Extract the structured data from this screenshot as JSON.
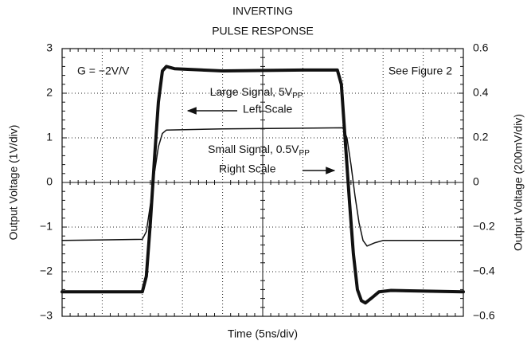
{
  "chart_data": {
    "type": "line",
    "title": [
      "INVERTING",
      "PULSE RESPONSE"
    ],
    "x_label": "Time (5ns/div)",
    "y_label": "Output Voltage (1V/div)",
    "y2_label": "Output Voltage (200mV/div)",
    "annotations": {
      "gain": "G = −2V/V",
      "figure": "See Figure 2",
      "large": {
        "text": "Large Signal, 5V",
        "sub": "PP"
      },
      "left_scale": "Left Scale",
      "small": {
        "text": "Small Signal, 0.5V",
        "sub": "PP"
      },
      "right_scale": "Right Scale"
    },
    "xlim": [
      0,
      50
    ],
    "xticks": [
      0,
      5,
      10,
      15,
      20,
      25,
      30,
      35,
      40,
      45,
      50
    ],
    "ylim": [
      -3,
      3
    ],
    "yticks": [
      {
        "value": -3,
        "label": "−3"
      },
      {
        "value": -2,
        "label": "−2"
      },
      {
        "value": -1,
        "label": "−1"
      },
      0,
      1,
      2,
      3
    ],
    "y2lim": [
      -0.6,
      0.6
    ],
    "y2ticks": [
      {
        "value": -0.6,
        "label": "−0.6"
      },
      {
        "value": -0.4,
        "label": "−0.4"
      },
      {
        "value": -0.2,
        "label": "−0.2"
      },
      0,
      0.2,
      0.4,
      0.6
    ],
    "grid": true,
    "series": [
      {
        "name": "Large Signal",
        "color": "#111111",
        "width": 4,
        "x": [
          0,
          10,
          10.5,
          11,
          11.5,
          12,
          12.5,
          13,
          14,
          20,
          30,
          34.3,
          34.8,
          35.3,
          35.8,
          36.3,
          36.8,
          37.3,
          37.8,
          38.5,
          39.5,
          41,
          50
        ],
        "values": [
          -2.45,
          -2.45,
          -2.1,
          -0.9,
          0.5,
          1.8,
          2.5,
          2.6,
          2.55,
          2.5,
          2.52,
          2.52,
          2.2,
          0.9,
          -0.4,
          -1.6,
          -2.4,
          -2.65,
          -2.7,
          -2.6,
          -2.45,
          -2.42,
          -2.45
        ]
      },
      {
        "name": "Small Signal",
        "color": "#111111",
        "width": 1.5,
        "axis": "y2",
        "x": [
          0,
          10,
          10.5,
          11,
          11.5,
          12,
          12.5,
          13,
          20,
          35,
          35.5,
          36,
          36.5,
          37,
          37.5,
          38,
          39,
          40,
          50
        ],
        "values": [
          -0.26,
          -0.255,
          -0.22,
          -0.1,
          0.04,
          0.16,
          0.22,
          0.235,
          0.24,
          0.245,
          0.2,
          0.08,
          -0.06,
          -0.18,
          -0.26,
          -0.285,
          -0.27,
          -0.26,
          -0.26
        ]
      }
    ]
  }
}
